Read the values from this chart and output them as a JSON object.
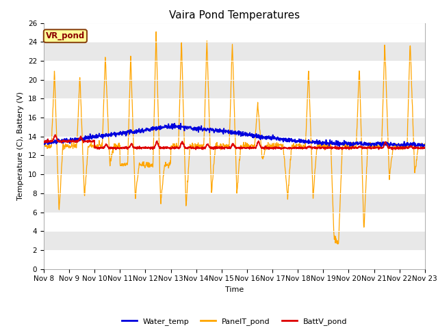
{
  "title": "Vaira Pond Temperatures",
  "xlabel": "Time",
  "ylabel": "Temperature (C), Battery (V)",
  "ylim": [
    0,
    26
  ],
  "yticks": [
    0,
    2,
    4,
    6,
    8,
    10,
    12,
    14,
    16,
    18,
    20,
    22,
    24,
    26
  ],
  "xtick_labels": [
    "Nov 8",
    "Nov 9",
    "Nov 10",
    "Nov 11",
    "Nov 12",
    "Nov 13",
    "Nov 14",
    "Nov 15",
    "Nov 16",
    "Nov 17",
    "Nov 18",
    "Nov 19",
    "Nov 20",
    "Nov 21",
    "Nov 22",
    "Nov 23"
  ],
  "water_color": "#0000dd",
  "panel_color": "#FFA500",
  "batt_color": "#dd0000",
  "fig_bg_color": "#ffffff",
  "plot_bg_color": "#f0f0f0",
  "band_color_light": "#ffffff",
  "band_color_dark": "#e8e8e8",
  "annotation_text": "VR_pond",
  "annotation_bg": "#ffff99",
  "annotation_border": "#8B4513",
  "legend_labels": [
    "Water_temp",
    "PanelT_pond",
    "BattV_pond"
  ],
  "title_fontsize": 11,
  "axis_fontsize": 8,
  "tick_fontsize": 7.5,
  "legend_fontsize": 8
}
